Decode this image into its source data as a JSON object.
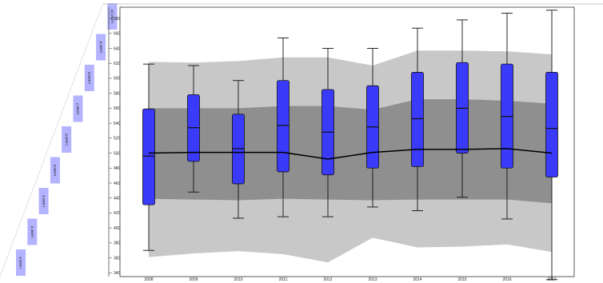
{
  "chart_data": {
    "type": "box",
    "title": "",
    "xlabel": "",
    "ylabel": "",
    "categories": [
      "2008",
      "2009",
      "2010",
      "2011",
      "2012",
      "2013",
      "2014",
      "2015",
      "2016",
      "2017"
    ],
    "boxes": [
      {
        "min": 370,
        "q1": 431,
        "median": 496,
        "q3": 559,
        "max": 619
      },
      {
        "min": 448,
        "q1": 489,
        "median": 534,
        "q3": 578,
        "max": 617
      },
      {
        "min": 413,
        "q1": 459,
        "median": 506,
        "q3": 552,
        "max": 597
      },
      {
        "min": 415,
        "q1": 475,
        "median": 537,
        "q3": 597,
        "max": 654
      },
      {
        "min": 415,
        "q1": 471,
        "median": 528,
        "q3": 585,
        "max": 640
      },
      {
        "min": 428,
        "q1": 480,
        "median": 535,
        "q3": 590,
        "max": 640
      },
      {
        "min": 423,
        "q1": 482,
        "median": 546,
        "q3": 608,
        "max": 667
      },
      {
        "min": 441,
        "q1": 500,
        "median": 560,
        "q3": 621,
        "max": 678
      },
      {
        "min": 412,
        "q1": 480,
        "median": 549,
        "q3": 619,
        "max": 687
      },
      {
        "min": 331,
        "q1": 468,
        "median": 533,
        "q3": 608,
        "max": 691
      }
    ],
    "trend_line": [
      500,
      501,
      501,
      501,
      492,
      501,
      505,
      505,
      506,
      500
    ],
    "bands": {
      "outer_upper": [
        622,
        621,
        623,
        628,
        628,
        617,
        637,
        637,
        636,
        632
      ],
      "inner_upper": [
        560,
        560,
        560,
        563,
        563,
        558,
        572,
        572,
        570,
        566
      ],
      "inner_lower": [
        439,
        438,
        437,
        439,
        438,
        437,
        438,
        438,
        438,
        433
      ],
      "outer_lower": [
        361,
        366,
        369,
        365,
        354,
        387,
        374,
        375,
        378,
        368
      ]
    },
    "ylim": [
      335,
      695
    ],
    "yticks": [
      340,
      360,
      380,
      400,
      420,
      440,
      460,
      480,
      500,
      520,
      540,
      560,
      580,
      600,
      620,
      640,
      660,
      680
    ],
    "y_tick_labels": [
      "340",
      "360",
      "380",
      "400",
      "420",
      "440",
      "460",
      "480",
      "500",
      "520",
      "540",
      "560",
      "580",
      "600",
      "620",
      "640",
      "660",
      "680"
    ],
    "grid": false,
    "legend": "none",
    "colors": {
      "box_fill": "#3a3afa",
      "box_stroke": "#111111",
      "outer_band": "#c8c8c8",
      "inner_band": "#8f8f8f",
      "level_tag": "#b3b3ff"
    },
    "level_scale": {
      "labels": [
        "Level 2",
        "Level 3",
        "Level 4",
        "Level 5",
        "Level 6",
        "Level 7",
        "Level 8",
        "Level 9",
        "Level 10"
      ]
    }
  }
}
